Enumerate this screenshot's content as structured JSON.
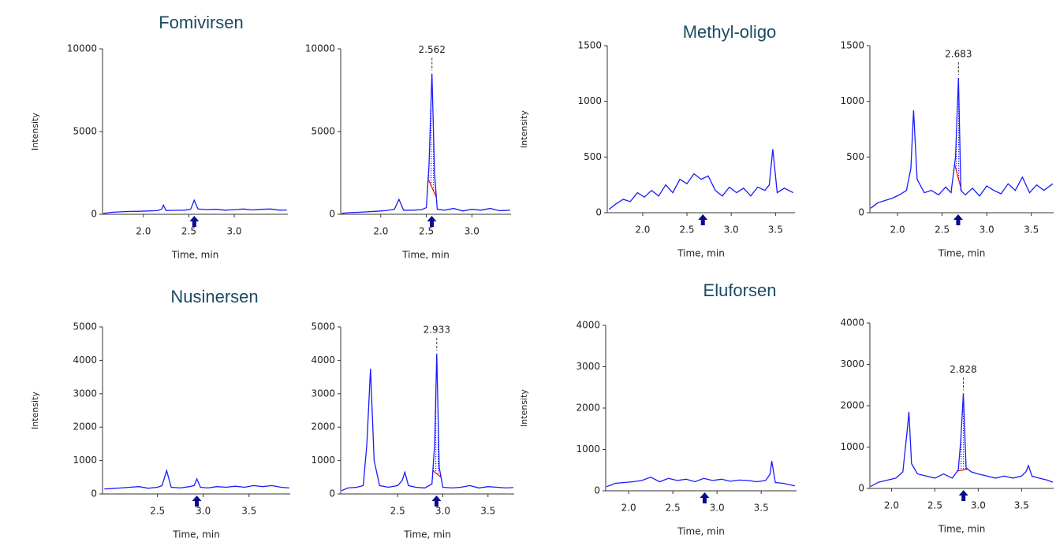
{
  "chart_data": [
    {
      "type": "line",
      "title": "Fomivirsen",
      "ylabel": "Intensity",
      "xlabel": "Time, min",
      "color": "#1a1aff",
      "arrow_color": "#0a0a8c",
      "xlim": [
        1.55,
        3.59
      ],
      "ylim": [
        0,
        10000
      ],
      "xticks": [
        {
          "value": 2,
          "label": "2.0"
        },
        2.5,
        {
          "value": 3,
          "label": "3.0"
        }
      ],
      "yticks": [
        0,
        5000,
        10000
      ],
      "x": [
        1.56,
        1.65,
        1.75,
        1.85,
        1.95,
        2.05,
        2.15,
        2.2,
        2.22,
        2.25,
        2.35,
        2.45,
        2.52,
        2.56,
        2.6,
        2.7,
        2.8,
        2.9,
        3.0,
        3.1,
        3.2,
        3.3,
        3.4,
        3.5,
        3.58
      ],
      "values": [
        50,
        120,
        150,
        170,
        180,
        200,
        220,
        300,
        550,
        230,
        240,
        250,
        300,
        850,
        320,
        280,
        300,
        250,
        280,
        320,
        260,
        300,
        320,
        250,
        260
      ],
      "marker_x": 2.56
    },
    {
      "type": "line",
      "xlabel": "Time, min",
      "color": "#1a1aff",
      "arrow_color": "#0a0a8c",
      "baseline_color": "#ff0000",
      "xlim": [
        1.56,
        3.43
      ],
      "ylim": [
        0,
        10000
      ],
      "xticks": [
        {
          "value": 2,
          "label": "2.0"
        },
        2.5,
        {
          "value": 3,
          "label": "3.0"
        }
      ],
      "yticks": [
        0,
        5000,
        10000
      ],
      "x": [
        1.57,
        1.65,
        1.75,
        1.85,
        1.95,
        2.05,
        2.15,
        2.2,
        2.25,
        2.35,
        2.45,
        2.5,
        2.53,
        2.562,
        2.59,
        2.62,
        2.7,
        2.8,
        2.9,
        3.0,
        3.1,
        3.2,
        3.3,
        3.42
      ],
      "values": [
        50,
        100,
        120,
        150,
        180,
        220,
        300,
        900,
        250,
        250,
        280,
        400,
        3000,
        8500,
        2500,
        300,
        250,
        350,
        200,
        300,
        250,
        350,
        220,
        250
      ],
      "marker_x": 2.56,
      "peak_label": 2.562,
      "peak_range": [
        2.52,
        2.61
      ]
    },
    {
      "type": "line",
      "title": "Methyl-oligo",
      "ylabel": "Intensity",
      "xlabel": "Time, min",
      "color": "#1a1aff",
      "arrow_color": "#0a0a8c",
      "xlim": [
        1.6,
        3.72
      ],
      "ylim": [
        0,
        1500
      ],
      "xticks": [
        {
          "value": 2,
          "label": "2.0"
        },
        2.5,
        {
          "value": 3,
          "label": "3.0"
        },
        3.5
      ],
      "yticks": [
        0,
        500,
        1000,
        1500
      ],
      "x": [
        1.62,
        1.7,
        1.78,
        1.86,
        1.94,
        2.02,
        2.1,
        2.18,
        2.26,
        2.34,
        2.42,
        2.5,
        2.58,
        2.66,
        2.74,
        2.82,
        2.9,
        2.98,
        3.06,
        3.14,
        3.22,
        3.3,
        3.38,
        3.43,
        3.47,
        3.52,
        3.6,
        3.7
      ],
      "values": [
        30,
        80,
        120,
        100,
        180,
        140,
        200,
        150,
        250,
        180,
        300,
        260,
        350,
        300,
        330,
        200,
        150,
        230,
        180,
        220,
        150,
        230,
        200,
        250,
        570,
        180,
        220,
        180
      ],
      "marker_x": 2.68
    },
    {
      "type": "line",
      "xlabel": "Time, min",
      "color": "#1a1aff",
      "arrow_color": "#0a0a8c",
      "baseline_color": "#ff0000",
      "xlim": [
        1.69,
        3.75
      ],
      "ylim": [
        0,
        1500
      ],
      "xticks": [
        {
          "value": 2,
          "label": "2.0"
        },
        2.5,
        {
          "value": 3,
          "label": "3.0"
        },
        3.5
      ],
      "yticks": [
        0,
        500,
        1000,
        1500
      ],
      "x": [
        1.7,
        1.78,
        1.86,
        1.94,
        2.02,
        2.1,
        2.15,
        2.18,
        2.22,
        2.3,
        2.38,
        2.46,
        2.54,
        2.6,
        2.65,
        2.683,
        2.71,
        2.76,
        2.84,
        2.92,
        3.0,
        3.08,
        3.16,
        3.24,
        3.32,
        3.4,
        3.48,
        3.56,
        3.64,
        3.74
      ],
      "values": [
        40,
        90,
        110,
        130,
        160,
        200,
        400,
        920,
        300,
        180,
        200,
        160,
        230,
        180,
        500,
        1210,
        200,
        160,
        220,
        150,
        240,
        200,
        170,
        260,
        200,
        320,
        180,
        250,
        200,
        260
      ],
      "marker_x": 2.68,
      "peak_label": 2.683,
      "peak_range": [
        2.64,
        2.72
      ]
    },
    {
      "type": "line",
      "title": "Nusinersen",
      "ylabel": "Intensity",
      "xlabel": "Time, min",
      "color": "#1a1aff",
      "arrow_color": "#0a0a8c",
      "xlim": [
        1.9,
        3.95
      ],
      "ylim": [
        0,
        5000
      ],
      "xticks": [
        2.5,
        {
          "value": 3,
          "label": "3.0"
        },
        3.5
      ],
      "yticks": [
        0,
        1000,
        2000,
        3000,
        4000,
        5000
      ],
      "x": [
        1.92,
        2.0,
        2.1,
        2.2,
        2.3,
        2.4,
        2.5,
        2.55,
        2.6,
        2.65,
        2.75,
        2.85,
        2.9,
        2.93,
        2.97,
        3.05,
        3.15,
        3.25,
        3.35,
        3.45,
        3.55,
        3.65,
        3.75,
        3.85,
        3.94
      ],
      "values": [
        150,
        160,
        180,
        200,
        220,
        170,
        200,
        250,
        700,
        200,
        180,
        220,
        250,
        450,
        200,
        180,
        220,
        200,
        230,
        200,
        250,
        220,
        250,
        200,
        180
      ],
      "marker_x": 2.93
    },
    {
      "type": "line",
      "xlabel": "Time, min",
      "color": "#1a1aff",
      "arrow_color": "#0a0a8c",
      "baseline_color": "#ff0000",
      "xlim": [
        1.87,
        3.79
      ],
      "ylim": [
        0,
        5000
      ],
      "xticks": [
        2.5,
        {
          "value": 3,
          "label": "3.0"
        },
        3.5
      ],
      "yticks": [
        0,
        1000,
        2000,
        3000,
        4000,
        5000
      ],
      "x": [
        1.88,
        1.95,
        2.05,
        2.12,
        2.16,
        2.2,
        2.24,
        2.3,
        2.4,
        2.5,
        2.55,
        2.58,
        2.62,
        2.7,
        2.8,
        2.88,
        2.91,
        2.933,
        2.96,
        3.0,
        3.1,
        3.2,
        3.3,
        3.4,
        3.5,
        3.6,
        3.7,
        3.78
      ],
      "values": [
        100,
        180,
        200,
        250,
        1500,
        3750,
        1000,
        250,
        200,
        250,
        400,
        650,
        250,
        200,
        180,
        300,
        1500,
        4200,
        800,
        200,
        180,
        200,
        250,
        180,
        220,
        200,
        180,
        190
      ],
      "marker_x": 2.93,
      "peak_label": 2.933,
      "peak_range": [
        2.89,
        2.98
      ]
    },
    {
      "type": "line",
      "title": "Eluforsen",
      "ylabel": "Intensity",
      "xlabel": "Time, min",
      "color": "#1a1aff",
      "arrow_color": "#0a0a8c",
      "xlim": [
        1.74,
        3.9
      ],
      "ylim": [
        0,
        4000
      ],
      "xticks": [
        {
          "value": 2,
          "label": "2.0"
        },
        2.5,
        {
          "value": 3,
          "label": "3.0"
        },
        3.5
      ],
      "yticks": [
        0,
        1000,
        2000,
        3000,
        4000
      ],
      "x": [
        1.75,
        1.85,
        1.95,
        2.05,
        2.15,
        2.25,
        2.35,
        2.45,
        2.55,
        2.65,
        2.75,
        2.85,
        2.95,
        3.05,
        3.15,
        3.25,
        3.35,
        3.45,
        3.55,
        3.6,
        3.62,
        3.66,
        3.75,
        3.88
      ],
      "values": [
        100,
        180,
        200,
        220,
        250,
        330,
        220,
        300,
        250,
        280,
        220,
        300,
        250,
        280,
        230,
        260,
        250,
        220,
        250,
        400,
        720,
        200,
        180,
        120
      ],
      "marker_x": 2.86
    },
    {
      "type": "line",
      "xlabel": "Time, min",
      "color": "#1a1aff",
      "arrow_color": "#0a0a8c",
      "baseline_color": "#ff0000",
      "xlim": [
        1.75,
        3.87
      ],
      "ylim": [
        0,
        4000
      ],
      "xticks": [
        {
          "value": 2,
          "label": "2.0"
        },
        2.5,
        {
          "value": 3,
          "label": "3.0"
        },
        3.5
      ],
      "yticks": [
        0,
        1000,
        2000,
        3000,
        4000
      ],
      "x": [
        1.76,
        1.85,
        1.95,
        2.05,
        2.13,
        2.18,
        2.2,
        2.23,
        2.3,
        2.4,
        2.5,
        2.6,
        2.7,
        2.77,
        2.8,
        2.828,
        2.86,
        2.92,
        3.0,
        3.1,
        3.2,
        3.3,
        3.4,
        3.5,
        3.55,
        3.58,
        3.62,
        3.7,
        3.8,
        3.86
      ],
      "values": [
        50,
        150,
        200,
        250,
        400,
        1400,
        1850,
        600,
        350,
        300,
        250,
        350,
        250,
        450,
        1200,
        2300,
        500,
        400,
        350,
        300,
        250,
        300,
        250,
        300,
        400,
        550,
        300,
        250,
        200,
        150
      ],
      "marker_x": 2.83,
      "peak_label": 2.828,
      "peak_range": [
        2.76,
        2.88
      ]
    }
  ]
}
